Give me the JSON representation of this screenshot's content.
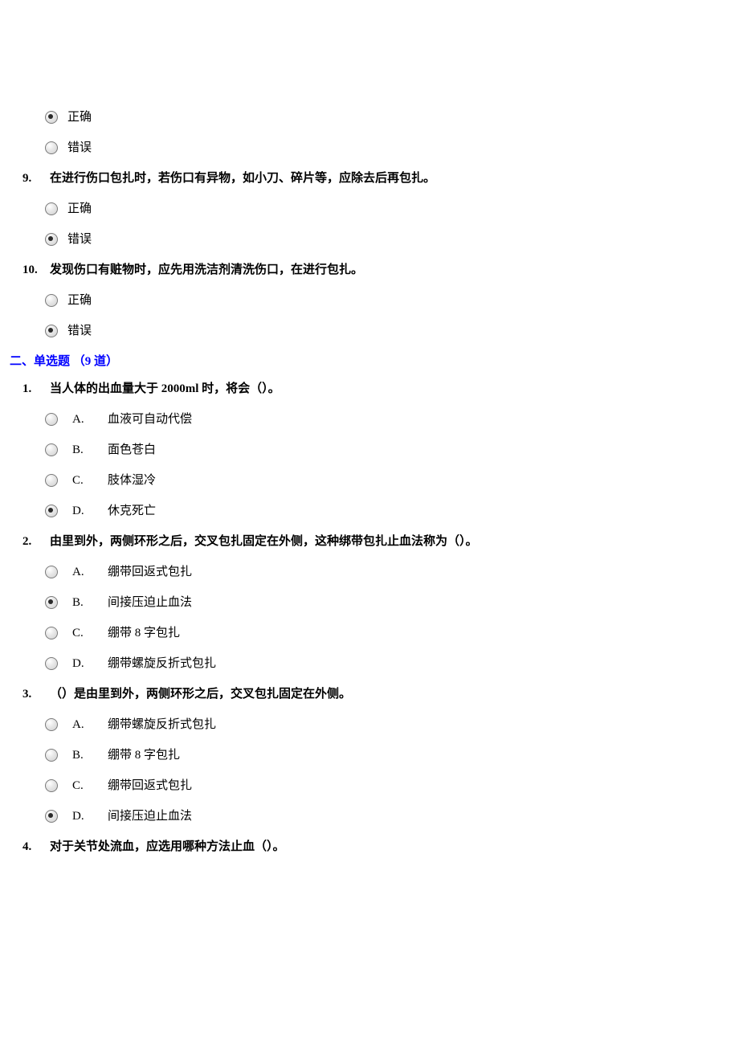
{
  "tf_labels": {
    "true": "正确",
    "false": "错误"
  },
  "tf_questions": [
    {
      "num": "",
      "text": "",
      "selected": "true"
    },
    {
      "num": "9.",
      "text": "在进行伤口包扎时，若伤口有异物，如小刀、碎片等，应除去后再包扎。",
      "selected": "false"
    },
    {
      "num": "10.",
      "text": "发现伤口有赃物时，应先用洗洁剂清洗伤口，在进行包扎。",
      "selected": "false"
    }
  ],
  "section2_title": "二、单选题 （9 道）",
  "mc_questions": [
    {
      "num": "1.",
      "text": "当人体的出血量大于 2000ml 时，将会（）。",
      "selected": 3,
      "options": [
        {
          "letter": "A.",
          "text": "血液可自动代偿"
        },
        {
          "letter": "B.",
          "text": "面色苍白"
        },
        {
          "letter": "C.",
          "text": "肢体湿冷"
        },
        {
          "letter": "D.",
          "text": "休克死亡"
        }
      ]
    },
    {
      "num": "2.",
      "text": "由里到外，两侧环形之后，交叉包扎固定在外侧，这种绑带包扎止血法称为（）。",
      "selected": 1,
      "options": [
        {
          "letter": "A.",
          "text": "绷带回返式包扎"
        },
        {
          "letter": "B.",
          "text": "间接压迫止血法"
        },
        {
          "letter": "C.",
          "text": "绷带 8 字包扎"
        },
        {
          "letter": "D.",
          "text": "绷带螺旋反折式包扎"
        }
      ]
    },
    {
      "num": "3.",
      "text": "（）是由里到外，两侧环形之后，交叉包扎固定在外侧。",
      "selected": 3,
      "options": [
        {
          "letter": "A.",
          "text": "绷带螺旋反折式包扎"
        },
        {
          "letter": "B.",
          "text": "绷带 8 字包扎"
        },
        {
          "letter": "C.",
          "text": "绷带回返式包扎"
        },
        {
          "letter": "D.",
          "text": "间接压迫止血法"
        }
      ]
    },
    {
      "num": "4.",
      "text": "对于关节处流血，应选用哪种方法止血（）。",
      "selected": -1,
      "options": []
    }
  ]
}
